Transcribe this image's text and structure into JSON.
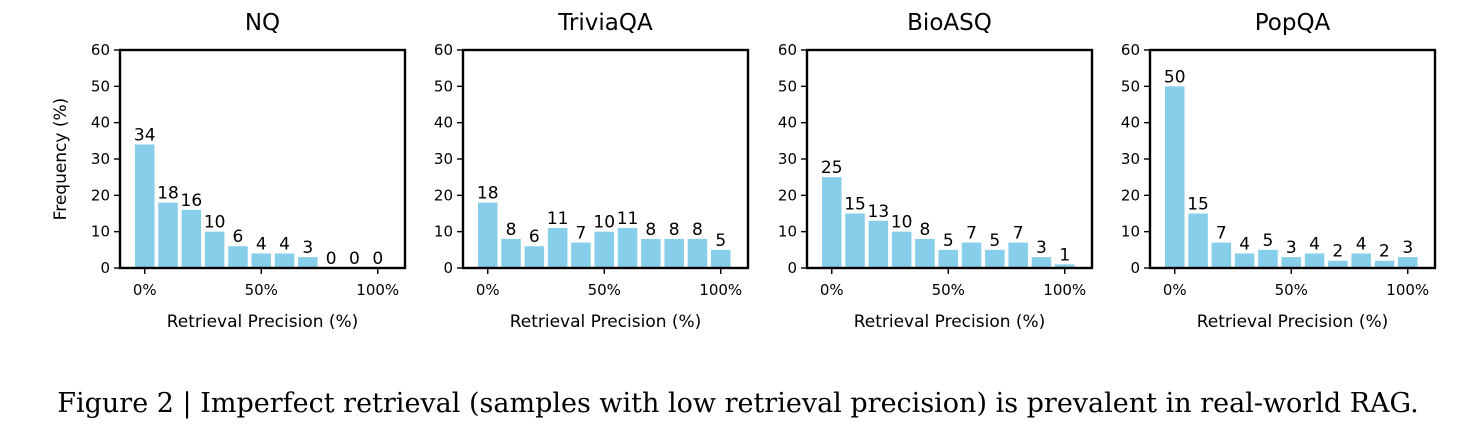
{
  "caption": "Figure 2 | Imperfect retrieval (samples with low retrieval precision) is prevalent in real-world RAG.",
  "colors": {
    "bar": "#87ceeb",
    "axis": "#000000"
  },
  "chart_data": [
    {
      "type": "bar",
      "title": "NQ",
      "xlabel": "Retrieval Precision (%)",
      "ylabel": "Frequency (%)",
      "x": [
        0,
        10,
        20,
        30,
        40,
        50,
        60,
        70,
        80,
        90,
        100
      ],
      "values": [
        34,
        18,
        16,
        10,
        6,
        4,
        4,
        3,
        0,
        0,
        0
      ],
      "data_labels": [
        "34",
        "18",
        "16",
        "10",
        "6",
        "4",
        "4",
        "3",
        "0",
        "0",
        "0"
      ],
      "xticks": [
        0,
        50,
        100
      ],
      "xtick_labels": [
        "0%",
        "50%",
        "100%"
      ],
      "yticks": [
        0,
        10,
        20,
        30,
        40,
        50,
        60
      ],
      "ytick_labels": [
        "0",
        "10",
        "20",
        "30",
        "40",
        "50",
        "60"
      ],
      "ylim": [
        0,
        60
      ],
      "grid": false,
      "legend": "none"
    },
    {
      "type": "bar",
      "title": "TriviaQA",
      "xlabel": "Retrieval Precision (%)",
      "ylabel": "",
      "x": [
        0,
        10,
        20,
        30,
        40,
        50,
        60,
        70,
        80,
        90,
        100
      ],
      "values": [
        18,
        8,
        6,
        11,
        7,
        10,
        11,
        8,
        8,
        8,
        5
      ],
      "data_labels": [
        "18",
        "8",
        "6",
        "11",
        "7",
        "10",
        "11",
        "8",
        "8",
        "8",
        "5"
      ],
      "xticks": [
        0,
        50,
        100
      ],
      "xtick_labels": [
        "0%",
        "50%",
        "100%"
      ],
      "yticks": [
        0,
        10,
        20,
        30,
        40,
        50,
        60
      ],
      "ytick_labels": [
        "0",
        "10",
        "20",
        "30",
        "40",
        "50",
        "60"
      ],
      "ylim": [
        0,
        60
      ],
      "grid": false,
      "legend": "none"
    },
    {
      "type": "bar",
      "title": "BioASQ",
      "xlabel": "Retrieval Precision (%)",
      "ylabel": "",
      "x": [
        0,
        10,
        20,
        30,
        40,
        50,
        60,
        70,
        80,
        90,
        100
      ],
      "values": [
        25,
        15,
        13,
        10,
        8,
        5,
        7,
        5,
        7,
        3,
        1
      ],
      "data_labels": [
        "25",
        "15",
        "13",
        "10",
        "8",
        "5",
        "7",
        "5",
        "7",
        "3",
        "1"
      ],
      "xticks": [
        0,
        50,
        100
      ],
      "xtick_labels": [
        "0%",
        "50%",
        "100%"
      ],
      "yticks": [
        0,
        10,
        20,
        30,
        40,
        50,
        60
      ],
      "ytick_labels": [
        "0",
        "10",
        "20",
        "30",
        "40",
        "50",
        "60"
      ],
      "ylim": [
        0,
        60
      ],
      "grid": false,
      "legend": "none"
    },
    {
      "type": "bar",
      "title": "PopQA",
      "xlabel": "Retrieval Precision (%)",
      "ylabel": "",
      "x": [
        0,
        10,
        20,
        30,
        40,
        50,
        60,
        70,
        80,
        90,
        100
      ],
      "values": [
        50,
        15,
        7,
        4,
        5,
        3,
        4,
        2,
        4,
        2,
        3
      ],
      "data_labels": [
        "50",
        "15",
        "7",
        "4",
        "5",
        "3",
        "4",
        "2",
        "4",
        "2",
        "3"
      ],
      "xticks": [
        0,
        50,
        100
      ],
      "xtick_labels": [
        "0%",
        "50%",
        "100%"
      ],
      "yticks": [
        0,
        10,
        20,
        30,
        40,
        50,
        60
      ],
      "ytick_labels": [
        "0",
        "10",
        "20",
        "30",
        "40",
        "50",
        "60"
      ],
      "ylim": [
        0,
        60
      ],
      "grid": false,
      "legend": "none"
    }
  ]
}
